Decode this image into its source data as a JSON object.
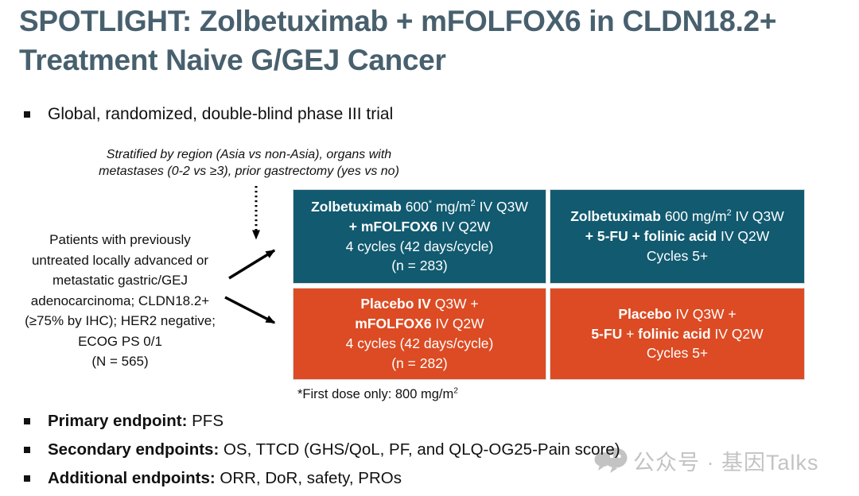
{
  "slide": {
    "title": "SPOTLIGHT: Zolbetuximab + mFOLFOX6 in CLDN18.2+ Treatment Naive G/GEJ Cancer",
    "intro_bullet": "Global, randomized, double-blind phase III trial",
    "stratification": {
      "line1": "Stratified by region (Asia vs non-Asia), organs with",
      "line2": "metastases (0-2 vs ≥3), prior gastrectomy (yes vs no)"
    },
    "population": {
      "lines": [
        "Patients with previously",
        "untreated locally advanced or",
        "metastatic gastric/GEJ",
        "adenocarcinoma; CLDN18.2+",
        "(≥75% by IHC); HER2 negative;",
        "ECOG PS 0/1",
        "(N = 565)"
      ]
    },
    "arms": {
      "zolbetuximab_mfolfox6": {
        "runs": [
          {
            "t": "Zolbetuximab",
            "b": 1
          },
          {
            "t": " 600"
          },
          {
            "t": "*",
            "sup": 1
          },
          {
            "t": " mg/m"
          },
          {
            "t": "2",
            "sup": 1
          },
          {
            "t": " IV Q3W"
          },
          {
            "br": 1
          },
          {
            "t": "+ mFOLFOX6",
            "b": 1
          },
          {
            "t": " IV Q2W"
          },
          {
            "br": 1
          },
          {
            "t": "4 cycles (42 days/cycle)"
          },
          {
            "br": 1
          },
          {
            "t": "(n = 283)"
          }
        ]
      },
      "zolbetuximab_5fu": {
        "runs": [
          {
            "t": "Zolbetuximab",
            "b": 1
          },
          {
            "t": " 600 mg/m"
          },
          {
            "t": "2",
            "sup": 1
          },
          {
            "t": " IV Q3W"
          },
          {
            "br": 1
          },
          {
            "t": "+ 5-FU + folinic acid",
            "b": 1
          },
          {
            "t": " IV Q2W"
          },
          {
            "br": 1
          },
          {
            "t": "Cycles 5+"
          }
        ]
      },
      "placebo_mfolfox6": {
        "runs": [
          {
            "t": "Placebo IV",
            "b": 1
          },
          {
            "t": " Q3W +"
          },
          {
            "br": 1
          },
          {
            "t": "mFOLFOX6",
            "b": 1
          },
          {
            "t": " IV Q2W"
          },
          {
            "br": 1
          },
          {
            "t": "4 cycles (42 days/cycle)"
          },
          {
            "br": 1
          },
          {
            "t": "(n = 282)"
          }
        ]
      },
      "placebo_5fu": {
        "runs": [
          {
            "t": "Placebo",
            "b": 1
          },
          {
            "t": " IV Q3W +"
          },
          {
            "br": 1
          },
          {
            "t": "5-FU",
            "b": 1
          },
          {
            "t": " + "
          },
          {
            "t": "folinic acid",
            "b": 1
          },
          {
            "t": " IV Q2W"
          },
          {
            "br": 1
          },
          {
            "t": "Cycles 5+"
          }
        ]
      }
    },
    "footnote": {
      "runs": [
        {
          "t": "*First dose only: 800 mg/m"
        },
        {
          "t": "2",
          "sup": 1
        }
      ]
    },
    "endpoints": [
      {
        "label": "Primary endpoint:",
        "text": " PFS"
      },
      {
        "label": "Secondary endpoints:",
        "text": " OS, TTCD (GHS/QoL, PF, and QLQ-OG25-Pain score)"
      },
      {
        "label": "Additional endpoints:",
        "text": " ORR, DoR, safety, PROs"
      }
    ],
    "watermark": {
      "icon": "wechat-official-account-icon",
      "text": "公众号 · 基因Talks"
    },
    "colors": {
      "title": "#48606e",
      "teal": "#115a70",
      "orange": "#dc4b23",
      "watermark": "#c3c3c3"
    }
  }
}
